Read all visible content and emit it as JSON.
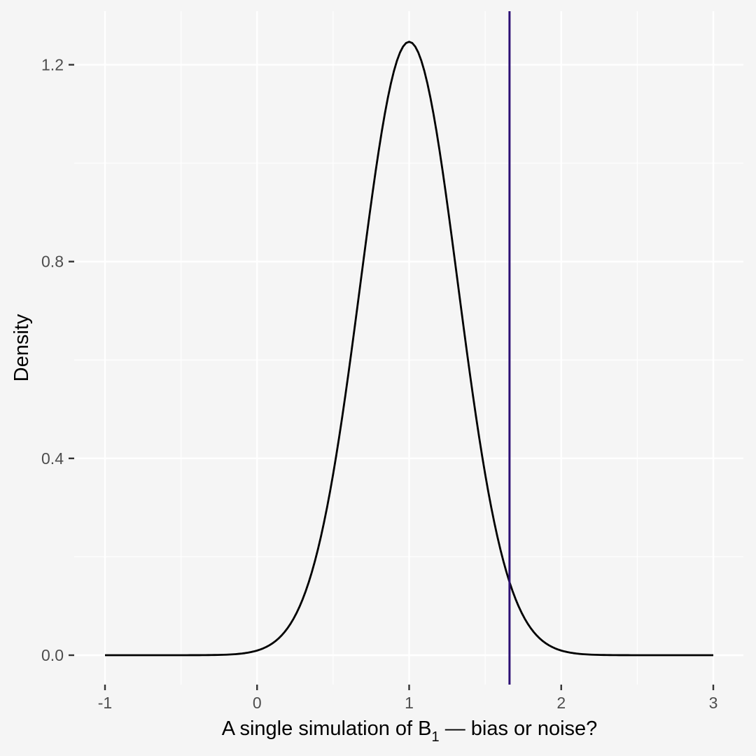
{
  "chart_data": {
    "type": "line",
    "title": "",
    "xlabel": "A single simulation of B",
    "xlabel_subscript": "1",
    "xlabel_suffix": " — bias or noise?",
    "ylabel": "Density",
    "xlim": [
      -1,
      3
    ],
    "ylim": [
      0,
      1.25
    ],
    "x_ticks": [
      -1,
      0,
      1,
      2,
      3
    ],
    "x_tick_labels": [
      "-1",
      "0",
      "1",
      "2",
      "3"
    ],
    "y_ticks": [
      0,
      0.4,
      0.8,
      1.2
    ],
    "y_tick_labels": [
      "0.0",
      "0.4",
      "0.8",
      "1.2"
    ],
    "grid": true,
    "series": [
      {
        "kind": "normal-density",
        "mean": 1,
        "sd": 0.32,
        "x_range": [
          -1,
          3
        ],
        "color": "#000000"
      }
    ],
    "vline": {
      "x": 1.66,
      "color": "#2c0f74"
    }
  },
  "colors": {
    "background": "#f5f5f5",
    "grid": "#ffffff",
    "curve": "#000000",
    "vline": "#2c0f74"
  }
}
